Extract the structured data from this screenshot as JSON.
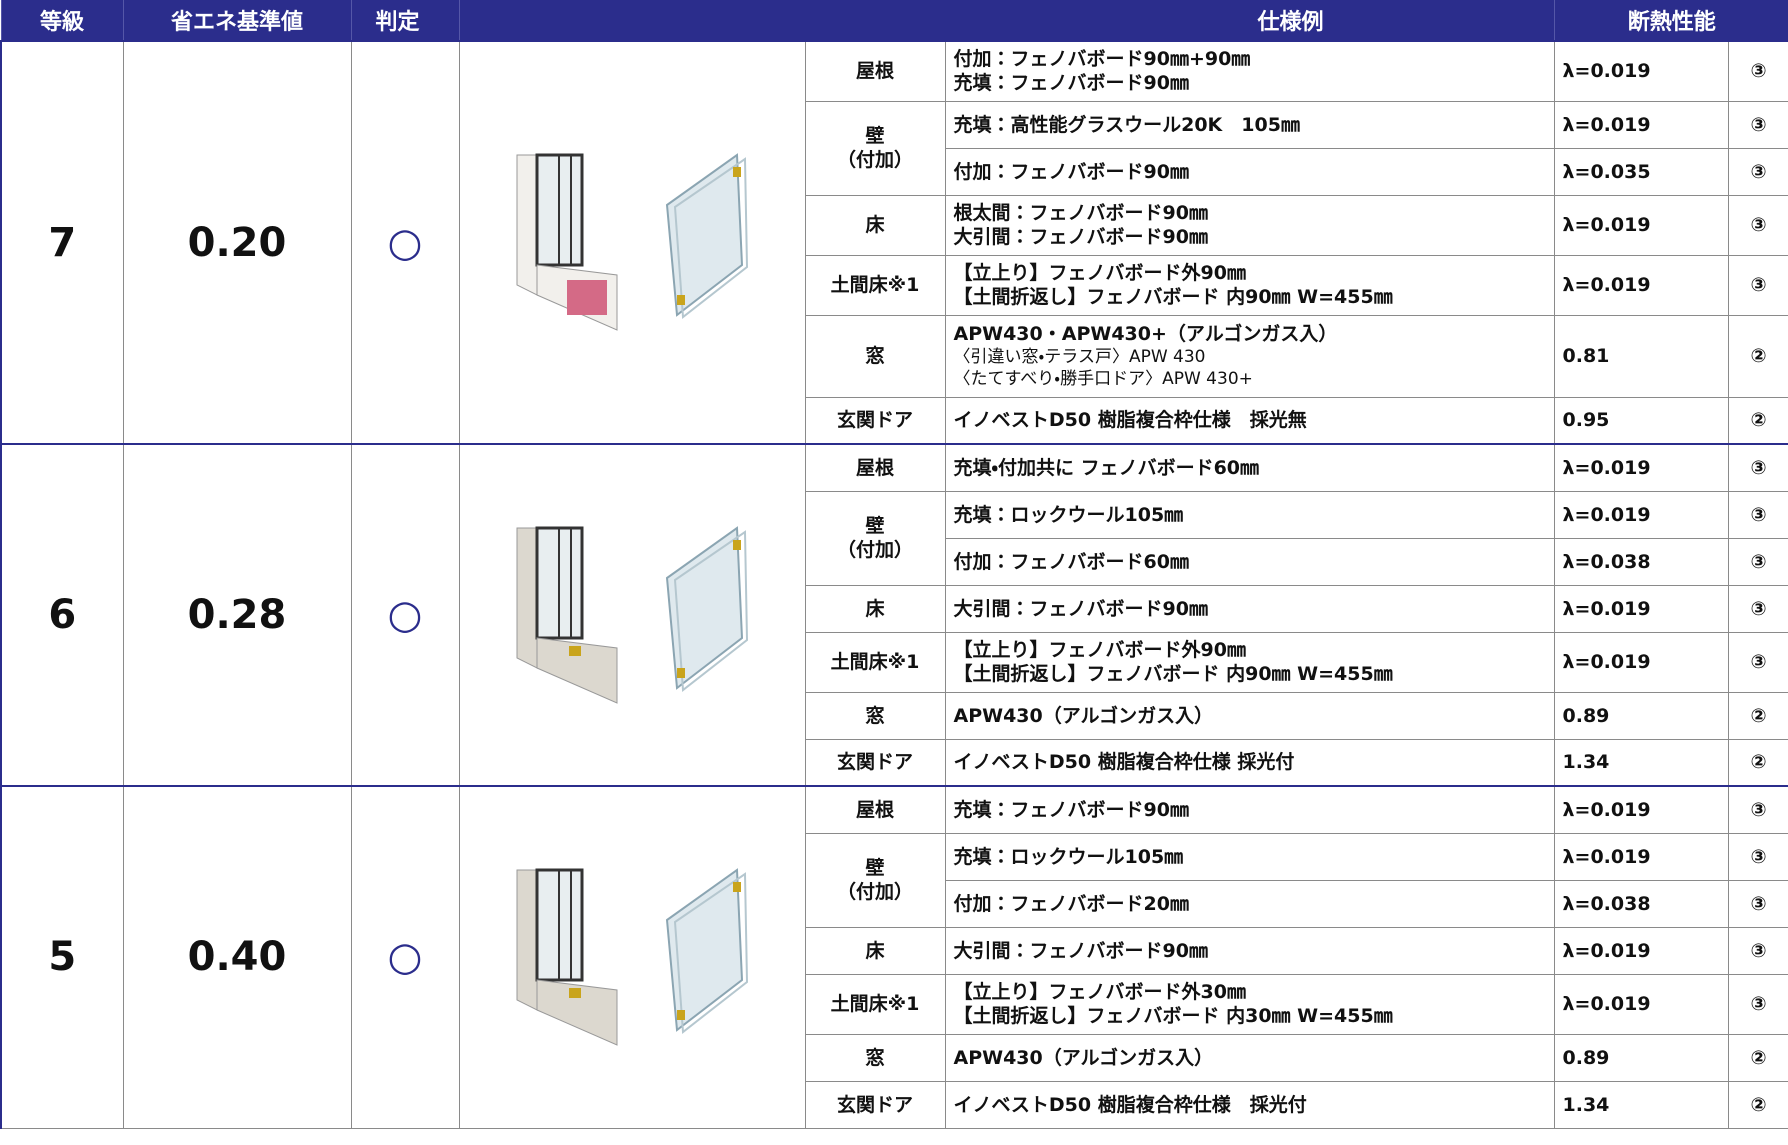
{
  "header": {
    "grade": "等級",
    "standard": "省エネ基準値",
    "judge": "判定",
    "spec": "仕様例",
    "performance": "断熱性能"
  },
  "groups": [
    {
      "grade": "7",
      "value": "0.20",
      "judge": "○",
      "parts": [
        {
          "part": [
            "屋根"
          ],
          "specs": [
            {
              "lines": [
                "付加：フェノバボード90㎜+90㎜",
                "充填：フェノバボード90㎜"
              ],
              "perf": "λ=0.019",
              "rating": "③"
            }
          ]
        },
        {
          "part": [
            "壁",
            "（付加）"
          ],
          "specs": [
            {
              "lines": [
                "充填：高性能グラスウール20K　105㎜"
              ],
              "perf": "λ=0.019",
              "rating": "③"
            },
            {
              "lines": [
                "付加：フェノバボード90㎜"
              ],
              "perf": "λ=0.035",
              "rating": "③"
            }
          ]
        },
        {
          "part": [
            "床"
          ],
          "specs": [
            {
              "lines": [
                "根太間：フェノバボード90㎜",
                "大引間：フェノバボード90㎜"
              ],
              "perf": "λ=0.019",
              "rating": "③"
            }
          ]
        },
        {
          "part": [
            "土間床※1"
          ],
          "specs": [
            {
              "lines": [
                "【立上り】フェノバボード外90㎜",
                "【土間折返し】フェノバボード 内90㎜ W=455㎜"
              ],
              "perf": "λ=0.019",
              "rating": "③"
            }
          ]
        },
        {
          "part": [
            "窓"
          ],
          "specs": [
            {
              "lines": [
                "APW430・APW430+（アルゴンガス入）",
                "〈引違い窓・テラス戸〉APW 430",
                "〈たてすべり・勝手口ドア〉APW 430+"
              ],
              "perf": "0.81",
              "rating": "②"
            }
          ]
        },
        {
          "part": [
            "玄関ドア"
          ],
          "specs": [
            {
              "lines": [
                "イノベストD50 樹脂複合枠仕様　採光無"
              ],
              "perf": "0.95",
              "rating": "②"
            }
          ]
        }
      ]
    },
    {
      "grade": "6",
      "value": "0.28",
      "judge": "○",
      "parts": [
        {
          "part": [
            "屋根"
          ],
          "specs": [
            {
              "lines": [
                "充填・付加共に フェノバボード60㎜"
              ],
              "perf": "λ=0.019",
              "rating": "③"
            }
          ]
        },
        {
          "part": [
            "壁",
            "（付加）"
          ],
          "specs": [
            {
              "lines": [
                "充填：ロックウール105㎜"
              ],
              "perf": "λ=0.019",
              "rating": "③"
            },
            {
              "lines": [
                "付加：フェノバボード60㎜"
              ],
              "perf": "λ=0.038",
              "rating": "③"
            }
          ]
        },
        {
          "part": [
            "床"
          ],
          "specs": [
            {
              "lines": [
                "大引間：フェノバボード90㎜"
              ],
              "perf": "λ=0.019",
              "rating": "③"
            }
          ]
        },
        {
          "part": [
            "土間床※1"
          ],
          "specs": [
            {
              "lines": [
                "【立上り】フェノバボード外90㎜",
                "【土間折返し】フェノバボード 内90㎜ W=455㎜"
              ],
              "perf": "λ=0.019",
              "rating": "③"
            }
          ]
        },
        {
          "part": [
            "窓"
          ],
          "specs": [
            {
              "lines": [
                "APW430（アルゴンガス入）"
              ],
              "perf": "0.89",
              "rating": "②"
            }
          ]
        },
        {
          "part": [
            "玄関ドア"
          ],
          "specs": [
            {
              "lines": [
                "イノベストD50 樹脂複合枠仕様 採光付"
              ],
              "perf": "1.34",
              "rating": "②"
            }
          ]
        }
      ]
    },
    {
      "grade": "5",
      "value": "0.40",
      "judge": "○",
      "parts": [
        {
          "part": [
            "屋根"
          ],
          "specs": [
            {
              "lines": [
                "充填：フェノバボード90㎜"
              ],
              "perf": "λ=0.019",
              "rating": "③"
            }
          ]
        },
        {
          "part": [
            "壁",
            "（付加）"
          ],
          "specs": [
            {
              "lines": [
                "充填：ロックウール105㎜"
              ],
              "perf": "λ=0.019",
              "rating": "③"
            },
            {
              "lines": [
                "付加：フェノバボード20㎜"
              ],
              "perf": "λ=0.038",
              "rating": "③"
            }
          ]
        },
        {
          "part": [
            "床"
          ],
          "specs": [
            {
              "lines": [
                "大引間：フェノバボード90㎜"
              ],
              "perf": "λ=0.019",
              "rating": "③"
            }
          ]
        },
        {
          "part": [
            "土間床※1"
          ],
          "specs": [
            {
              "lines": [
                "【立上り】フェノバボード外30㎜",
                "【土間折返し】フェノバボード 内30㎜ W=455㎜"
              ],
              "perf": "λ=0.019",
              "rating": "③"
            }
          ]
        },
        {
          "part": [
            "窓"
          ],
          "specs": [
            {
              "lines": [
                "APW430（アルゴンガス入）"
              ],
              "perf": "0.89",
              "rating": "②"
            }
          ]
        },
        {
          "part": [
            "玄関ドア"
          ],
          "specs": [
            {
              "lines": [
                "イノベストD50 樹脂複合枠仕様　採光付"
              ],
              "perf": "1.34",
              "rating": "②"
            }
          ]
        }
      ]
    }
  ]
}
